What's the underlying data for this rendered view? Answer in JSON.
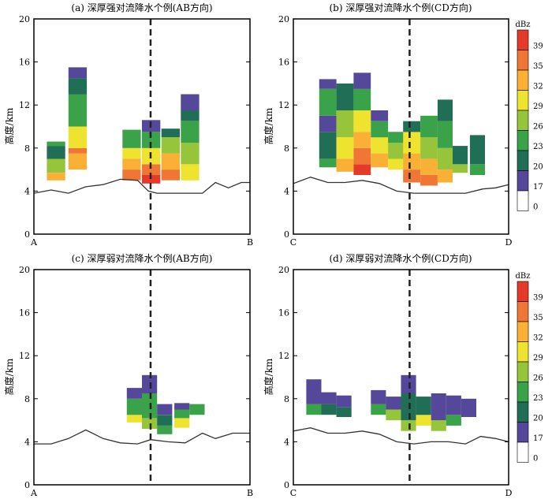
{
  "chart_data": [
    {
      "type": "heatmap",
      "title": "(a) 深厚强对流降水个例(AB方向)",
      "ylabel": "高度/km",
      "ylim": [
        0,
        20
      ],
      "yticks": [
        "20",
        "16",
        "12",
        "8",
        "4",
        "0"
      ],
      "xlabels": [
        "A",
        "B"
      ],
      "reference_line": "dashed vertical at midpoint",
      "terrain": [
        [
          0,
          3.8
        ],
        [
          0.08,
          4.1
        ],
        [
          0.16,
          3.8
        ],
        [
          0.24,
          4.4
        ],
        [
          0.32,
          4.6
        ],
        [
          0.4,
          5.1
        ],
        [
          0.48,
          5.0
        ],
        [
          0.53,
          4.0
        ],
        [
          0.57,
          3.8
        ],
        [
          0.65,
          3.8
        ],
        [
          0.78,
          3.8
        ],
        [
          0.84,
          4.8
        ],
        [
          0.9,
          4.3
        ],
        [
          0.96,
          4.8
        ],
        [
          1,
          4.8
        ]
      ],
      "cells": [
        {
          "x": 0.06,
          "w": 0.085,
          "bands": [
            [
              5.0,
              5.7,
              32
            ],
            [
              5.7,
              7.0,
              26
            ],
            [
              7.0,
              8.2,
              20
            ],
            [
              8.2,
              8.6,
              23
            ]
          ]
        },
        {
          "x": 0.16,
          "w": 0.085,
          "bands": [
            [
              6.0,
              7.5,
              32
            ],
            [
              7.5,
              8.0,
              35
            ],
            [
              8.0,
              10.0,
              29
            ],
            [
              10.0,
              13.0,
              23
            ],
            [
              13.0,
              14.5,
              20
            ],
            [
              14.5,
              15.5,
              17
            ]
          ]
        },
        {
          "x": 0.41,
          "w": 0.085,
          "bands": [
            [
              5.0,
              6.0,
              35
            ],
            [
              6.0,
              7.0,
              32
            ],
            [
              7.0,
              8.0,
              29
            ],
            [
              8.0,
              9.7,
              23
            ]
          ]
        },
        {
          "x": 0.5,
          "w": 0.085,
          "bands": [
            [
              4.7,
              5.5,
              39
            ],
            [
              5.5,
              6.5,
              35
            ],
            [
              6.5,
              8.0,
              29
            ],
            [
              8.0,
              9.5,
              23
            ],
            [
              9.5,
              10.6,
              17
            ]
          ]
        },
        {
          "x": 0.59,
          "w": 0.085,
          "bands": [
            [
              5.0,
              6.0,
              35
            ],
            [
              6.0,
              7.5,
              32
            ],
            [
              7.5,
              9.0,
              26
            ],
            [
              9.0,
              9.8,
              20
            ]
          ]
        },
        {
          "x": 0.68,
          "w": 0.085,
          "bands": [
            [
              5.0,
              6.5,
              29
            ],
            [
              6.5,
              8.5,
              26
            ],
            [
              8.5,
              10.5,
              23
            ],
            [
              10.5,
              11.5,
              20
            ],
            [
              11.5,
              13.0,
              17
            ]
          ]
        }
      ]
    },
    {
      "type": "heatmap",
      "title": "(b) 深厚强对流降水个例(CD方向)",
      "ylabel": "高度/km",
      "ylim": [
        0,
        20
      ],
      "yticks": [
        "20",
        "16",
        "12",
        "8",
        "4",
        "0"
      ],
      "xlabels": [
        "C",
        "D"
      ],
      "reference_line": "dashed vertical at midpoint",
      "terrain": [
        [
          0,
          4.7
        ],
        [
          0.08,
          5.3
        ],
        [
          0.16,
          4.8
        ],
        [
          0.24,
          4.8
        ],
        [
          0.32,
          5.0
        ],
        [
          0.4,
          4.7
        ],
        [
          0.48,
          4.0
        ],
        [
          0.56,
          3.8
        ],
        [
          0.64,
          3.8
        ],
        [
          0.72,
          3.8
        ],
        [
          0.8,
          3.8
        ],
        [
          0.88,
          4.2
        ],
        [
          0.94,
          4.3
        ],
        [
          1,
          4.6
        ]
      ],
      "cells": [
        {
          "x": 0.12,
          "w": 0.08,
          "bands": [
            [
              6.2,
              7.0,
              23
            ],
            [
              7.0,
              9.5,
              20
            ],
            [
              9.5,
              11.0,
              17
            ],
            [
              11.0,
              13.5,
              23
            ],
            [
              13.5,
              14.4,
              17
            ]
          ]
        },
        {
          "x": 0.2,
          "w": 0.08,
          "bands": [
            [
              5.8,
              7.0,
              32
            ],
            [
              7.0,
              9.0,
              29
            ],
            [
              9.0,
              11.5,
              26
            ],
            [
              11.5,
              14.0,
              20
            ]
          ]
        },
        {
          "x": 0.28,
          "w": 0.08,
          "bands": [
            [
              5.5,
              6.5,
              39
            ],
            [
              6.5,
              8.0,
              35
            ],
            [
              8.0,
              9.5,
              32
            ],
            [
              9.5,
              11.5,
              29
            ],
            [
              11.5,
              13.5,
              23
            ],
            [
              13.5,
              15.0,
              17
            ]
          ]
        },
        {
          "x": 0.36,
          "w": 0.08,
          "bands": [
            [
              6.2,
              7.5,
              32
            ],
            [
              7.5,
              9.0,
              29
            ],
            [
              9.0,
              10.5,
              23
            ],
            [
              10.5,
              11.5,
              17
            ]
          ]
        },
        {
          "x": 0.44,
          "w": 0.08,
          "bands": [
            [
              6.0,
              7.0,
              29
            ],
            [
              7.0,
              8.5,
              26
            ],
            [
              8.5,
              9.5,
              23
            ]
          ]
        },
        {
          "x": 0.51,
          "w": 0.08,
          "bands": [
            [
              4.8,
              6.0,
              35
            ],
            [
              6.0,
              7.5,
              32
            ],
            [
              7.5,
              9.5,
              29
            ],
            [
              9.5,
              10.5,
              20
            ]
          ]
        },
        {
          "x": 0.59,
          "w": 0.08,
          "bands": [
            [
              4.5,
              5.5,
              35
            ],
            [
              5.5,
              7.0,
              32
            ],
            [
              7.0,
              9.0,
              26
            ],
            [
              9.0,
              11.0,
              23
            ]
          ]
        },
        {
          "x": 0.67,
          "w": 0.07,
          "bands": [
            [
              4.8,
              6.0,
              32
            ],
            [
              6.0,
              8.0,
              26
            ],
            [
              8.0,
              10.5,
              23
            ],
            [
              10.5,
              12.5,
              20
            ]
          ]
        },
        {
          "x": 0.74,
          "w": 0.07,
          "bands": [
            [
              5.7,
              6.5,
              26
            ],
            [
              6.5,
              8.2,
              20
            ]
          ]
        },
        {
          "x": 0.82,
          "w": 0.07,
          "bands": [
            [
              5.5,
              6.5,
              23
            ],
            [
              6.5,
              9.2,
              20
            ]
          ]
        }
      ]
    },
    {
      "type": "heatmap",
      "title": "(c) 深厚弱对流降水个例(AB方向)",
      "ylabel": "高度/km",
      "ylim": [
        0,
        20
      ],
      "yticks": [
        "20",
        "16",
        "12",
        "8",
        "4",
        "0"
      ],
      "xlabels": [
        "A",
        "B"
      ],
      "reference_line": "dashed vertical at midpoint",
      "terrain": [
        [
          0,
          3.8
        ],
        [
          0.08,
          3.8
        ],
        [
          0.16,
          4.3
        ],
        [
          0.24,
          5.1
        ],
        [
          0.32,
          4.3
        ],
        [
          0.4,
          3.9
        ],
        [
          0.48,
          3.8
        ],
        [
          0.54,
          4.2
        ],
        [
          0.62,
          4.0
        ],
        [
          0.7,
          3.9
        ],
        [
          0.78,
          4.8
        ],
        [
          0.84,
          4.3
        ],
        [
          0.92,
          4.8
        ],
        [
          1,
          4.8
        ]
      ],
      "cells": [
        {
          "x": 0.43,
          "w": 0.07,
          "bands": [
            [
              5.8,
              6.5,
              29
            ],
            [
              6.5,
              8.0,
              23
            ],
            [
              8.0,
              9.0,
              17
            ]
          ]
        },
        {
          "x": 0.5,
          "w": 0.07,
          "bands": [
            [
              5.2,
              6.2,
              26
            ],
            [
              6.2,
              8.5,
              23
            ],
            [
              8.5,
              10.2,
              17
            ]
          ]
        },
        {
          "x": 0.57,
          "w": 0.07,
          "bands": [
            [
              4.7,
              5.5,
              23
            ],
            [
              5.5,
              6.5,
              20
            ],
            [
              6.5,
              7.5,
              17
            ]
          ]
        },
        {
          "x": 0.65,
          "w": 0.07,
          "bands": [
            [
              5.3,
              6.2,
              29
            ],
            [
              6.2,
              7.0,
              23
            ],
            [
              7.0,
              7.6,
              17
            ]
          ]
        },
        {
          "x": 0.72,
          "w": 0.07,
          "bands": [
            [
              6.5,
              7.5,
              23
            ]
          ]
        }
      ]
    },
    {
      "type": "heatmap",
      "title": "(d) 深厚弱对流降水个例(CD方向)",
      "ylabel": "高度/km",
      "ylim": [
        0,
        20
      ],
      "yticks": [
        "20",
        "16",
        "12",
        "8",
        "4",
        "0"
      ],
      "xlabels": [
        "C",
        "D"
      ],
      "reference_line": "dashed vertical at midpoint",
      "terrain": [
        [
          0,
          5.0
        ],
        [
          0.08,
          5.3
        ],
        [
          0.16,
          4.8
        ],
        [
          0.24,
          4.8
        ],
        [
          0.32,
          5.0
        ],
        [
          0.4,
          4.7
        ],
        [
          0.48,
          4.0
        ],
        [
          0.56,
          3.8
        ],
        [
          0.64,
          4.0
        ],
        [
          0.72,
          4.0
        ],
        [
          0.8,
          3.8
        ],
        [
          0.87,
          4.5
        ],
        [
          0.94,
          4.3
        ],
        [
          1,
          4.0
        ]
      ],
      "cells": [
        {
          "x": 0.06,
          "w": 0.07,
          "bands": [
            [
              6.5,
              7.5,
              23
            ],
            [
              7.5,
              9.8,
              17
            ]
          ]
        },
        {
          "x": 0.13,
          "w": 0.07,
          "bands": [
            [
              6.5,
              7.5,
              20
            ],
            [
              7.5,
              8.6,
              17
            ]
          ]
        },
        {
          "x": 0.2,
          "w": 0.07,
          "bands": [
            [
              6.3,
              7.2,
              20
            ],
            [
              7.2,
              8.3,
              17
            ]
          ]
        },
        {
          "x": 0.36,
          "w": 0.07,
          "bands": [
            [
              6.5,
              7.5,
              23
            ],
            [
              7.5,
              8.8,
              17
            ]
          ]
        },
        {
          "x": 0.43,
          "w": 0.07,
          "bands": [
            [
              6.0,
              7.0,
              26
            ],
            [
              7.0,
              8.2,
              17
            ]
          ]
        },
        {
          "x": 0.5,
          "w": 0.07,
          "bands": [
            [
              5.0,
              6.0,
              26
            ],
            [
              6.0,
              8.5,
              20
            ],
            [
              8.5,
              10.2,
              17
            ]
          ]
        },
        {
          "x": 0.57,
          "w": 0.07,
          "bands": [
            [
              5.5,
              6.5,
              29
            ],
            [
              6.5,
              8.2,
              20
            ]
          ]
        },
        {
          "x": 0.64,
          "w": 0.07,
          "bands": [
            [
              5.0,
              6.0,
              26
            ],
            [
              6.0,
              8.5,
              17
            ]
          ]
        },
        {
          "x": 0.71,
          "w": 0.07,
          "bands": [
            [
              5.5,
              6.5,
              23
            ],
            [
              6.5,
              8.3,
              17
            ]
          ]
        },
        {
          "x": 0.78,
          "w": 0.07,
          "bands": [
            [
              6.3,
              8.0,
              17
            ]
          ]
        }
      ]
    }
  ],
  "colorbar": {
    "title": "dBz",
    "labels": [
      "39",
      "35",
      "32",
      "29",
      "26",
      "23",
      "20",
      "17",
      "0"
    ],
    "colors": {
      "39": "#e43a2a",
      "35": "#f07636",
      "32": "#f9b035",
      "29": "#eee32e",
      "26": "#96c43a",
      "23": "#3aa349",
      "20": "#1f6e55",
      "17": "#55479a",
      "0": "#ffffff"
    }
  }
}
